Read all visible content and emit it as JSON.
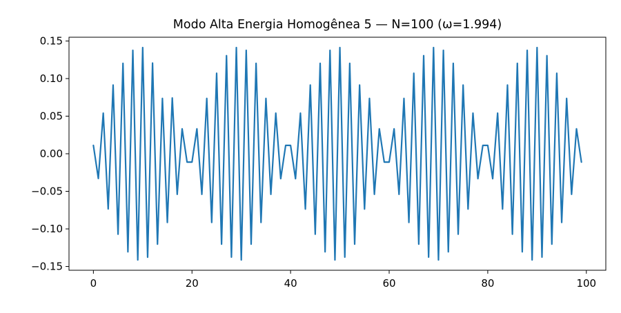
{
  "chart_data": {
    "type": "line",
    "title": "Modo Alta Energia Homogênea 5 — N=100 (ω=1.994)",
    "xlabel": "",
    "ylabel": "",
    "xlim": [
      -4.95,
      103.95
    ],
    "ylim": [
      -0.155,
      0.155
    ],
    "x_ticks": [
      0,
      20,
      40,
      60,
      80,
      100
    ],
    "x_tick_labels": [
      "0",
      "20",
      "40",
      "60",
      "80",
      "100"
    ],
    "y_ticks": [
      -0.15,
      -0.1,
      -0.05,
      0.0,
      0.05,
      0.1,
      0.15
    ],
    "y_tick_labels": [
      "−0.15",
      "−0.10",
      "−0.05",
      "0.00",
      "0.05",
      "0.10",
      "0.15"
    ],
    "grid": false,
    "legend": "none",
    "series": [
      {
        "color": "#1f77b4",
        "x": [
          0,
          1,
          2,
          3,
          4,
          5,
          6,
          7,
          8,
          9,
          10,
          11,
          12,
          13,
          14,
          15,
          16,
          17,
          18,
          19,
          20,
          21,
          22,
          23,
          24,
          25,
          26,
          27,
          28,
          29,
          30,
          31,
          32,
          33,
          34,
          35,
          36,
          37,
          38,
          39,
          40,
          41,
          42,
          43,
          44,
          45,
          46,
          47,
          48,
          49,
          50,
          51,
          52,
          53,
          54,
          55,
          56,
          57,
          58,
          59,
          60,
          61,
          62,
          63,
          64,
          65,
          66,
          67,
          68,
          69,
          70,
          71,
          72,
          73,
          74,
          75,
          76,
          77,
          78,
          79,
          80,
          81,
          82,
          83,
          84,
          85,
          86,
          87,
          88,
          89,
          90,
          91,
          92,
          93,
          94,
          95,
          96,
          97,
          98,
          99
        ],
        "values": [
          0.0111,
          -0.0329,
          0.054,
          -0.0734,
          0.0914,
          -0.1071,
          0.1203,
          -0.1305,
          0.1376,
          -0.1413,
          0.1413,
          -0.1377,
          0.1206,
          -0.1203,
          0.0736,
          -0.0914,
          0.0742,
          -0.054,
          0.0332,
          -0.0111,
          -0.0111,
          0.0332,
          -0.054,
          0.0736,
          -0.0914,
          0.1071,
          -0.1203,
          0.1305,
          -0.1376,
          0.1413,
          -0.1413,
          0.1376,
          -0.1203,
          0.1203,
          -0.0914,
          0.0736,
          -0.054,
          0.054,
          -0.0332,
          0.0111,
          0.0111,
          -0.0332,
          0.054,
          -0.0736,
          0.0914,
          -0.1071,
          0.1203,
          -0.1305,
          0.1376,
          -0.1413,
          0.1413,
          -0.1376,
          0.1203,
          -0.1203,
          0.0914,
          -0.0736,
          0.0736,
          -0.054,
          0.0332,
          -0.0111,
          -0.0111,
          0.0332,
          -0.054,
          0.0736,
          -0.0914,
          0.1071,
          -0.1203,
          0.1305,
          -0.1376,
          0.1413,
          -0.1413,
          0.1376,
          -0.1305,
          0.1203,
          -0.1071,
          0.0914,
          -0.0736,
          0.054,
          -0.0332,
          0.0111,
          0.0111,
          -0.0332,
          0.054,
          -0.0736,
          0.0914,
          -0.1071,
          0.1203,
          -0.1305,
          0.1376,
          -0.1413,
          0.1413,
          -0.1376,
          0.1305,
          -0.1203,
          0.1071,
          -0.0914,
          0.0736,
          -0.054,
          0.0332,
          -0.0111
        ]
      }
    ]
  }
}
